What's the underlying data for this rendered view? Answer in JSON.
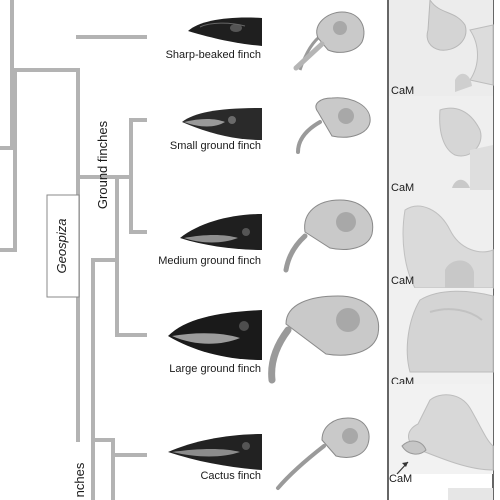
{
  "tree": {
    "genus_label": "Geospiza",
    "clade_label": "Ground finches",
    "partial_label": "nches"
  },
  "species": [
    {
      "name": "Sharp-beaked finch",
      "cam_label": "CaM"
    },
    {
      "name": "Small ground finch",
      "cam_label": "CaM"
    },
    {
      "name": "Medium ground finch",
      "cam_label": "CaM"
    },
    {
      "name": "Large ground finch",
      "cam_label": "CaM"
    },
    {
      "name": "Cactus finch",
      "cam_label": "CaM"
    }
  ],
  "colors": {
    "tree_line": "#b3b3b3",
    "divider": "#333333",
    "beak_dark": "#1f1f1f",
    "skull": "#c9c9c9",
    "stain_bg": "#e9e9e9",
    "stain": "#cfcfcf"
  }
}
